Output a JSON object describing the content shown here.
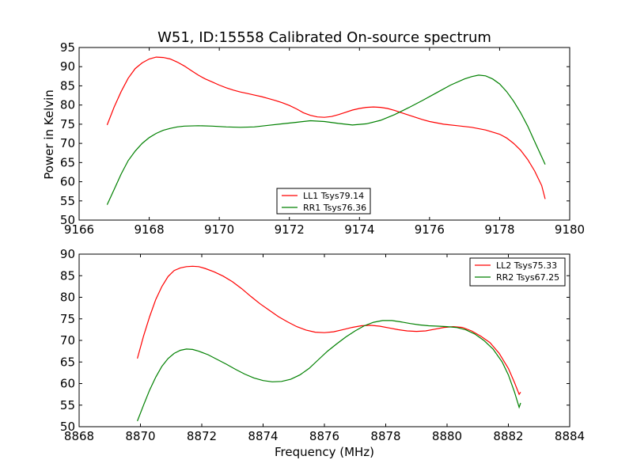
{
  "figure_title": "W51, ID:15558 Calibrated On-source spectrum",
  "xlabel": "Frequency (MHz)",
  "ylabel": "Power in Kelvin",
  "chart_data": [
    {
      "type": "line",
      "xlim": [
        9166,
        9180
      ],
      "ylim": [
        50,
        95
      ],
      "xticks": [
        9166,
        9168,
        9170,
        9172,
        9174,
        9176,
        9178,
        9180
      ],
      "yticks": [
        50,
        55,
        60,
        65,
        70,
        75,
        80,
        85,
        90,
        95
      ],
      "legend_position": "lower-center",
      "series": [
        {
          "name": "LL1 Tsys79.14",
          "color": "#ff0000",
          "points": [
            [
              9166.8,
              74.8
            ],
            [
              9167.0,
              79.5
            ],
            [
              9167.2,
              83.5
            ],
            [
              9167.4,
              87.0
            ],
            [
              9167.6,
              89.5
            ],
            [
              9167.8,
              91.0
            ],
            [
              9168.0,
              92.0
            ],
            [
              9168.2,
              92.5
            ],
            [
              9168.4,
              92.4
            ],
            [
              9168.6,
              92.0
            ],
            [
              9168.8,
              91.2
            ],
            [
              9169.0,
              90.2
            ],
            [
              9169.2,
              89.0
            ],
            [
              9169.4,
              87.8
            ],
            [
              9169.6,
              86.8
            ],
            [
              9169.8,
              86.0
            ],
            [
              9170.0,
              85.2
            ],
            [
              9170.2,
              84.5
            ],
            [
              9170.4,
              83.9
            ],
            [
              9170.6,
              83.4
            ],
            [
              9170.8,
              83.0
            ],
            [
              9171.0,
              82.6
            ],
            [
              9171.2,
              82.2
            ],
            [
              9171.4,
              81.7
            ],
            [
              9171.6,
              81.2
            ],
            [
              9171.8,
              80.6
            ],
            [
              9172.0,
              79.9
            ],
            [
              9172.2,
              79.0
            ],
            [
              9172.4,
              78.0
            ],
            [
              9172.6,
              77.3
            ],
            [
              9172.8,
              76.9
            ],
            [
              9173.0,
              76.8
            ],
            [
              9173.2,
              77.0
            ],
            [
              9173.4,
              77.5
            ],
            [
              9173.6,
              78.1
            ],
            [
              9173.8,
              78.7
            ],
            [
              9174.0,
              79.1
            ],
            [
              9174.2,
              79.4
            ],
            [
              9174.4,
              79.5
            ],
            [
              9174.6,
              79.4
            ],
            [
              9174.8,
              79.1
            ],
            [
              9175.0,
              78.6
            ],
            [
              9175.2,
              78.0
            ],
            [
              9175.4,
              77.4
            ],
            [
              9175.6,
              76.8
            ],
            [
              9175.8,
              76.2
            ],
            [
              9176.0,
              75.7
            ],
            [
              9176.4,
              75.0
            ],
            [
              9176.8,
              74.6
            ],
            [
              9177.2,
              74.2
            ],
            [
              9177.6,
              73.5
            ],
            [
              9178.0,
              72.4
            ],
            [
              9178.2,
              71.4
            ],
            [
              9178.4,
              70.0
            ],
            [
              9178.6,
              68.2
            ],
            [
              9178.8,
              65.8
            ],
            [
              9179.0,
              62.8
            ],
            [
              9179.2,
              59.0
            ],
            [
              9179.3,
              55.5
            ]
          ]
        },
        {
          "name": "RR1 Tsys76.36",
          "color": "#008000",
          "points": [
            [
              9166.8,
              54.0
            ],
            [
              9167.0,
              58.0
            ],
            [
              9167.2,
              62.0
            ],
            [
              9167.4,
              65.5
            ],
            [
              9167.6,
              68.0
            ],
            [
              9167.8,
              70.0
            ],
            [
              9168.0,
              71.5
            ],
            [
              9168.2,
              72.6
            ],
            [
              9168.4,
              73.4
            ],
            [
              9168.6,
              73.9
            ],
            [
              9168.8,
              74.3
            ],
            [
              9169.0,
              74.5
            ],
            [
              9169.4,
              74.6
            ],
            [
              9169.8,
              74.5
            ],
            [
              9170.2,
              74.3
            ],
            [
              9170.6,
              74.2
            ],
            [
              9171.0,
              74.3
            ],
            [
              9171.4,
              74.7
            ],
            [
              9171.8,
              75.1
            ],
            [
              9172.2,
              75.5
            ],
            [
              9172.6,
              75.9
            ],
            [
              9173.0,
              75.7
            ],
            [
              9173.4,
              75.2
            ],
            [
              9173.8,
              74.8
            ],
            [
              9174.2,
              75.1
            ],
            [
              9174.6,
              76.0
            ],
            [
              9175.0,
              77.5
            ],
            [
              9175.4,
              79.3
            ],
            [
              9175.8,
              81.2
            ],
            [
              9176.2,
              83.2
            ],
            [
              9176.6,
              85.2
            ],
            [
              9177.0,
              86.8
            ],
            [
              9177.2,
              87.4
            ],
            [
              9177.4,
              87.8
            ],
            [
              9177.6,
              87.6
            ],
            [
              9177.8,
              86.8
            ],
            [
              9178.0,
              85.5
            ],
            [
              9178.2,
              83.5
            ],
            [
              9178.4,
              81.0
            ],
            [
              9178.6,
              78.0
            ],
            [
              9178.8,
              74.5
            ],
            [
              9179.0,
              70.5
            ],
            [
              9179.2,
              66.5
            ],
            [
              9179.3,
              64.5
            ]
          ]
        }
      ]
    },
    {
      "type": "line",
      "xlim": [
        8868,
        8884
      ],
      "ylim": [
        50,
        90
      ],
      "xticks": [
        8868,
        8870,
        8872,
        8874,
        8876,
        8878,
        8880,
        8882,
        8884
      ],
      "yticks": [
        50,
        55,
        60,
        65,
        70,
        75,
        80,
        85,
        90
      ],
      "legend_position": "top-right",
      "series": [
        {
          "name": "LL2 Tsys75.33",
          "color": "#ff0000",
          "points": [
            [
              8869.9,
              65.8
            ],
            [
              8870.1,
              71.0
            ],
            [
              8870.3,
              75.5
            ],
            [
              8870.5,
              79.5
            ],
            [
              8870.7,
              82.5
            ],
            [
              8870.9,
              84.8
            ],
            [
              8871.1,
              86.2
            ],
            [
              8871.3,
              86.8
            ],
            [
              8871.5,
              87.1
            ],
            [
              8871.7,
              87.2
            ],
            [
              8871.9,
              87.1
            ],
            [
              8872.1,
              86.7
            ],
            [
              8872.4,
              85.9
            ],
            [
              8872.7,
              84.9
            ],
            [
              8873.0,
              83.6
            ],
            [
              8873.3,
              82.0
            ],
            [
              8873.6,
              80.2
            ],
            [
              8873.9,
              78.5
            ],
            [
              8874.2,
              77.0
            ],
            [
              8874.5,
              75.5
            ],
            [
              8874.8,
              74.3
            ],
            [
              8875.1,
              73.2
            ],
            [
              8875.4,
              72.4
            ],
            [
              8875.7,
              71.9
            ],
            [
              8876.0,
              71.8
            ],
            [
              8876.3,
              72.0
            ],
            [
              8876.6,
              72.5
            ],
            [
              8876.9,
              73.0
            ],
            [
              8877.2,
              73.4
            ],
            [
              8877.5,
              73.5
            ],
            [
              8877.8,
              73.3
            ],
            [
              8878.1,
              72.9
            ],
            [
              8878.4,
              72.5
            ],
            [
              8878.7,
              72.2
            ],
            [
              8879.0,
              72.1
            ],
            [
              8879.3,
              72.2
            ],
            [
              8879.6,
              72.6
            ],
            [
              8879.9,
              73.0
            ],
            [
              8880.2,
              73.2
            ],
            [
              8880.5,
              73.0
            ],
            [
              8880.8,
              72.2
            ],
            [
              8881.1,
              71.0
            ],
            [
              8881.4,
              69.5
            ],
            [
              8881.7,
              67.0
            ],
            [
              8882.0,
              63.5
            ],
            [
              8882.2,
              60.2
            ],
            [
              8882.35,
              57.5
            ],
            [
              8882.4,
              58.0
            ]
          ]
        },
        {
          "name": "RR2 Tsys67.25",
          "color": "#008000",
          "points": [
            [
              8869.9,
              51.3
            ],
            [
              8870.1,
              55.0
            ],
            [
              8870.3,
              58.5
            ],
            [
              8870.5,
              61.5
            ],
            [
              8870.7,
              64.0
            ],
            [
              8870.9,
              65.8
            ],
            [
              8871.1,
              67.0
            ],
            [
              8871.3,
              67.7
            ],
            [
              8871.5,
              68.0
            ],
            [
              8871.7,
              67.9
            ],
            [
              8871.9,
              67.5
            ],
            [
              8872.2,
              66.7
            ],
            [
              8872.5,
              65.6
            ],
            [
              8872.8,
              64.5
            ],
            [
              8873.1,
              63.3
            ],
            [
              8873.4,
              62.2
            ],
            [
              8873.7,
              61.3
            ],
            [
              8874.0,
              60.7
            ],
            [
              8874.3,
              60.4
            ],
            [
              8874.6,
              60.5
            ],
            [
              8874.9,
              61.0
            ],
            [
              8875.2,
              62.0
            ],
            [
              8875.5,
              63.5
            ],
            [
              8875.8,
              65.5
            ],
            [
              8876.1,
              67.5
            ],
            [
              8876.4,
              69.2
            ],
            [
              8876.7,
              70.8
            ],
            [
              8877.0,
              72.2
            ],
            [
              8877.3,
              73.4
            ],
            [
              8877.6,
              74.2
            ],
            [
              8877.9,
              74.6
            ],
            [
              8878.2,
              74.6
            ],
            [
              8878.5,
              74.3
            ],
            [
              8878.8,
              73.9
            ],
            [
              8879.1,
              73.6
            ],
            [
              8879.4,
              73.4
            ],
            [
              8879.7,
              73.3
            ],
            [
              8880.0,
              73.2
            ],
            [
              8880.3,
              73.0
            ],
            [
              8880.6,
              72.5
            ],
            [
              8880.9,
              71.5
            ],
            [
              8881.2,
              70.0
            ],
            [
              8881.5,
              68.0
            ],
            [
              8881.8,
              65.0
            ],
            [
              8882.0,
              62.0
            ],
            [
              8882.2,
              58.0
            ],
            [
              8882.35,
              54.5
            ],
            [
              8882.4,
              55.5
            ]
          ]
        }
      ]
    }
  ]
}
